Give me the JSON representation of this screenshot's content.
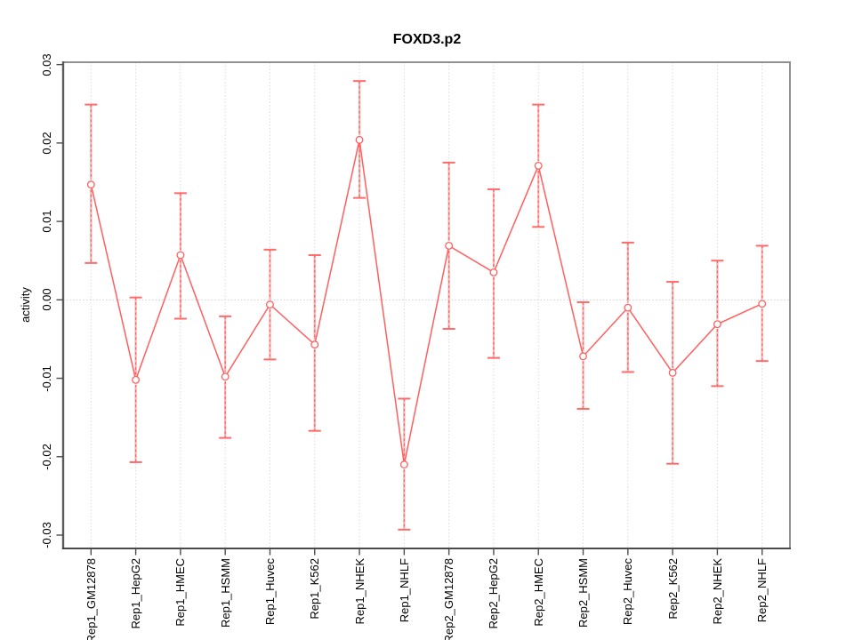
{
  "figure": {
    "background": "#ffffff"
  },
  "chart_data": {
    "type": "line",
    "title": "FOXD3.p2",
    "xlabel": "",
    "ylabel": "activity",
    "categories": [
      "Rep1_GM12878",
      "Rep1_HepG2",
      "Rep1_HMEC",
      "Rep1_HSMM",
      "Rep1_Huvec",
      "Rep1_K562",
      "Rep1_NHEK",
      "Rep1_NHLF",
      "Rep2_GM12878",
      "Rep2_HepG2",
      "Rep2_HMEC",
      "Rep2_HSMM",
      "Rep2_Huvec",
      "Rep2_K562",
      "Rep2_NHEK",
      "Rep2_NHLF"
    ],
    "series": [
      {
        "name": "FOXD3.p2 activity",
        "marker": "open-circle",
        "values": [
          0.0147,
          -0.0102,
          0.0057,
          -0.0098,
          -0.0006,
          -0.0057,
          0.0204,
          -0.021,
          0.0069,
          0.0035,
          0.0171,
          -0.0072,
          -0.001,
          -0.0093,
          -0.0031,
          -0.0005
        ],
        "error_upper": [
          0.0249,
          0.0003,
          0.0136,
          -0.0021,
          0.0064,
          0.0057,
          0.0279,
          -0.0126,
          0.0175,
          0.0141,
          0.0249,
          -0.0003,
          0.0073,
          0.0023,
          0.005,
          0.0069
        ],
        "error_lower": [
          0.0047,
          -0.0207,
          -0.0024,
          -0.0176,
          -0.0076,
          -0.0167,
          0.013,
          -0.0293,
          -0.0037,
          -0.0074,
          0.0093,
          -0.0139,
          -0.0092,
          -0.0209,
          -0.011,
          -0.0078
        ]
      }
    ],
    "ylim": [
      -0.0317,
      0.0303
    ],
    "yticks": [
      0.03,
      0.02,
      0.01,
      0,
      -0.01,
      -0.02,
      -0.03
    ],
    "ytick_labels": [
      "0.03",
      "0.02",
      "0.01",
      "0.00",
      "-0.01",
      "-0.02",
      "-0.03"
    ],
    "grid": {
      "vertical_at_categories": true,
      "zero_line": true,
      "style": "dotted"
    },
    "legend_position": "none",
    "error_bar_style": "dashed-with-caps",
    "colors": {
      "line": "#ff5f5f",
      "marker_stroke": "#ff5f5f",
      "error_bar_core": "#f8b0b0",
      "error_bar_dash": "#ff5f5f",
      "cap": "#ff6b6b",
      "grid": "#d9d9d9",
      "zero_line": "#cfcfcf",
      "box": "#919191",
      "axis_left": "#5a5a5a",
      "axis_bottom": "#333333",
      "tick": "#4d4d4d",
      "text": "#000000"
    }
  }
}
